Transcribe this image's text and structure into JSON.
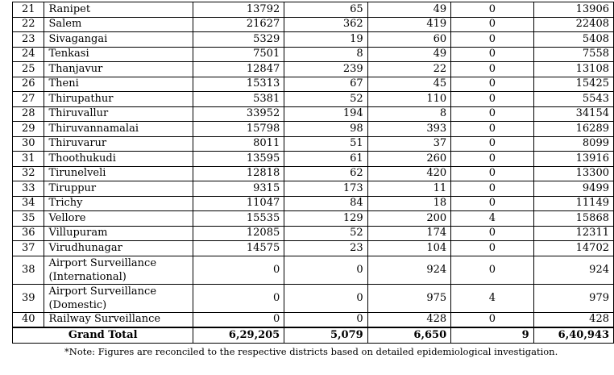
{
  "rows": [
    {
      "sno": "21",
      "name": "Ranipet",
      "c1": "13792",
      "c2": "65",
      "c3": "49",
      "c4": "0",
      "total": "13906"
    },
    {
      "sno": "22",
      "name": "Salem",
      "c1": "21627",
      "c2": "362",
      "c3": "419",
      "c4": "0",
      "total": "22408"
    },
    {
      "sno": "23",
      "name": "Sivagangai",
      "c1": "5329",
      "c2": "19",
      "c3": "60",
      "c4": "0",
      "total": "5408"
    },
    {
      "sno": "24",
      "name": "Tenkasi",
      "c1": "7501",
      "c2": "8",
      "c3": "49",
      "c4": "0",
      "total": "7558"
    },
    {
      "sno": "25",
      "name": "Thanjavur",
      "c1": "12847",
      "c2": "239",
      "c3": "22",
      "c4": "0",
      "total": "13108"
    },
    {
      "sno": "26",
      "name": "Theni",
      "c1": "15313",
      "c2": "67",
      "c3": "45",
      "c4": "0",
      "total": "15425"
    },
    {
      "sno": "27",
      "name": "Thirupathur",
      "c1": "5381",
      "c2": "52",
      "c3": "110",
      "c4": "0",
      "total": "5543"
    },
    {
      "sno": "28",
      "name": "Thiruvallur",
      "c1": "33952",
      "c2": "194",
      "c3": "8",
      "c4": "0",
      "total": "34154"
    },
    {
      "sno": "29",
      "name": "Thiruvannamalai",
      "c1": "15798",
      "c2": "98",
      "c3": "393",
      "c4": "0",
      "total": "16289"
    },
    {
      "sno": "30",
      "name": "Thiruvarur",
      "c1": "8011",
      "c2": "51",
      "c3": "37",
      "c4": "0",
      "total": "8099"
    },
    {
      "sno": "31",
      "name": "Thoothukudi",
      "c1": "13595",
      "c2": "61",
      "c3": "260",
      "c4": "0",
      "total": "13916"
    },
    {
      "sno": "32",
      "name": "Tirunelveli",
      "c1": "12818",
      "c2": "62",
      "c3": "420",
      "c4": "0",
      "total": "13300"
    },
    {
      "sno": "33",
      "name": "Tiruppur",
      "c1": "9315",
      "c2": "173",
      "c3": "11",
      "c4": "0",
      "total": "9499"
    },
    {
      "sno": "34",
      "name": "Trichy",
      "c1": "11047",
      "c2": "84",
      "c3": "18",
      "c4": "0",
      "total": "11149"
    },
    {
      "sno": "35",
      "name": "Vellore",
      "c1": "15535",
      "c2": "129",
      "c3": "200",
      "c4": "4",
      "total": "15868"
    },
    {
      "sno": "36",
      "name": "Villupuram",
      "c1": "12085",
      "c2": "52",
      "c3": "174",
      "c4": "0",
      "total": "12311"
    },
    {
      "sno": "37",
      "name": "Virudhunagar",
      "c1": "14575",
      "c2": "23",
      "c3": "104",
      "c4": "0",
      "total": "14702"
    },
    {
      "sno": "38",
      "name": "Airport Surveillance (International)",
      "c1": "0",
      "c2": "0",
      "c3": "924",
      "c4": "0",
      "total": "924"
    },
    {
      "sno": "39",
      "name": "Airport Surveillance (Domestic)",
      "c1": "0",
      "c2": "0",
      "c3": "975",
      "c4": "4",
      "total": "979"
    },
    {
      "sno": "40",
      "name": "Railway Surveillance",
      "c1": "0",
      "c2": "0",
      "c3": "428",
      "c4": "0",
      "total": "428"
    }
  ],
  "grand_total": {
    "label": "Grand Total",
    "c1": "6,29,205",
    "c2": "5,079",
    "c3": "6,650",
    "c4": "9",
    "total": "6,40,943"
  },
  "note": "*Note: Figures are reconciled to the respective districts based on detailed epidemiological investigation."
}
